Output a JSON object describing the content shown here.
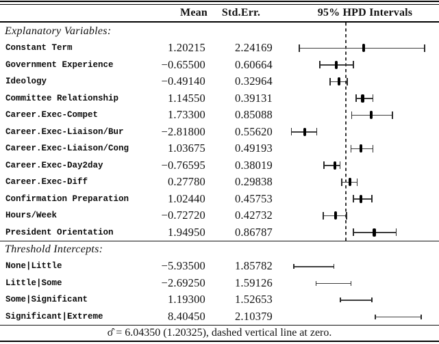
{
  "table": {
    "headers": {
      "mean": "Mean",
      "stderr": "Std.Err.",
      "hpd": "95% HPD Intervals"
    },
    "footer": "σ̂ = 6.04350 (1.20325), dashed vertical line at zero.",
    "sections": [
      {
        "title": "Explanatory Variables:",
        "zero_line": true,
        "mean_marker": true,
        "axis": {
          "min": -4.15,
          "max": 6.4
        },
        "rows": [
          {
            "label": "Constant Term",
            "mean": "1.20215",
            "stderr": "2.24169",
            "mean_v": 1.20215,
            "hpd_lo": -3.2,
            "hpd_hi": 5.4
          },
          {
            "label": "Government Experience",
            "mean": "−0.65500",
            "stderr": "0.60664",
            "mean_v": -0.655,
            "hpd_lo": -1.8,
            "hpd_hi": 0.5
          },
          {
            "label": "Ideology",
            "mean": "−0.49140",
            "stderr": "0.32964",
            "mean_v": -0.4914,
            "hpd_lo": -1.1,
            "hpd_hi": 0.08
          },
          {
            "label": "Committee Relationship",
            "mean": "1.14550",
            "stderr": "0.39131",
            "mean_v": 1.1455,
            "hpd_lo": 0.7,
            "hpd_hi": 1.85
          },
          {
            "label": "Career.Exec-Compet",
            "mean": "1.73300",
            "stderr": "0.85088",
            "mean_v": 1.733,
            "hpd_lo": 0.4,
            "hpd_hi": 3.2
          },
          {
            "label": "Career.Exec-Liaison/Bur",
            "mean": "−2.81800",
            "stderr": "0.55620",
            "mean_v": -2.818,
            "hpd_lo": -3.75,
            "hpd_hi": -2.0
          },
          {
            "label": "Career.Exec-Liaison/Cong",
            "mean": "1.03675",
            "stderr": "0.49193",
            "mean_v": 1.03675,
            "hpd_lo": 0.35,
            "hpd_hi": 1.85
          },
          {
            "label": "Career.Exec-Day2day",
            "mean": "−0.76595",
            "stderr": "0.38019",
            "mean_v": -0.76595,
            "hpd_lo": -1.5,
            "hpd_hi": -0.4
          },
          {
            "label": "Career.Exec-Diff",
            "mean": "0.27780",
            "stderr": "0.29838",
            "mean_v": 0.2778,
            "hpd_lo": -0.3,
            "hpd_hi": 0.78
          },
          {
            "label": "Confirmation Preparation",
            "mean": "1.02440",
            "stderr": "0.45753",
            "mean_v": 1.0244,
            "hpd_lo": 0.5,
            "hpd_hi": 1.78
          },
          {
            "label": "Hours/Week",
            "mean": "−0.72720",
            "stderr": "0.42732",
            "mean_v": -0.7272,
            "hpd_lo": -1.55,
            "hpd_hi": 0.05
          },
          {
            "label": "President Orientation",
            "mean": "1.94950",
            "stderr": "0.86787",
            "mean_v": 1.9495,
            "hpd_lo": 0.52,
            "hpd_hi": 3.45
          }
        ]
      },
      {
        "title": "Threshold Intercepts:",
        "zero_line": false,
        "mean_marker": false,
        "axis": {
          "min": -10.8,
          "max": 15.3
        },
        "rows": [
          {
            "label": "None|Little",
            "mean": "−5.93500",
            "stderr": "1.85782",
            "mean_v": -5.935,
            "hpd_lo": -9.4,
            "hpd_hi": -2.6
          },
          {
            "label": "Little|Some",
            "mean": "−2.69250",
            "stderr": "1.59126",
            "mean_v": -2.6925,
            "hpd_lo": -5.6,
            "hpd_hi": 0.35
          },
          {
            "label": "Some|Significant",
            "mean": "1.19300",
            "stderr": "1.52653",
            "mean_v": 1.193,
            "hpd_lo": -1.5,
            "hpd_hi": 3.9
          },
          {
            "label": "Significant|Extreme",
            "mean": "8.40450",
            "stderr": "2.10379",
            "mean_v": 8.4045,
            "hpd_lo": 4.45,
            "hpd_hi": 12.3
          }
        ]
      }
    ]
  }
}
